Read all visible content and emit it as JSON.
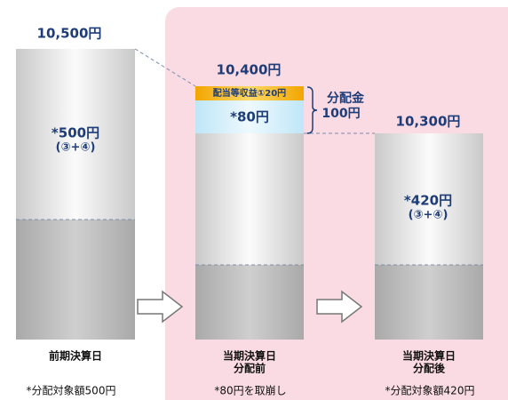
{
  "columns": [
    {
      "amount": "10,500円",
      "note": [
        "*500円",
        "(③+④)"
      ],
      "label": [
        "前期決算日"
      ],
      "footnote": "*分配対象額500円"
    },
    {
      "amount": "10,400円",
      "income": "配当等収益①20円",
      "capital": "*80円",
      "distribution": [
        "分配金",
        "100円"
      ],
      "label": [
        "当期決算日",
        "分配前"
      ],
      "footnote": "*80円を取崩し"
    },
    {
      "amount": "10,300円",
      "note": [
        "*420円",
        "(③+④)"
      ],
      "label": [
        "当期決算日",
        "分配後"
      ],
      "footnote": "*分配対象額420円"
    }
  ]
}
